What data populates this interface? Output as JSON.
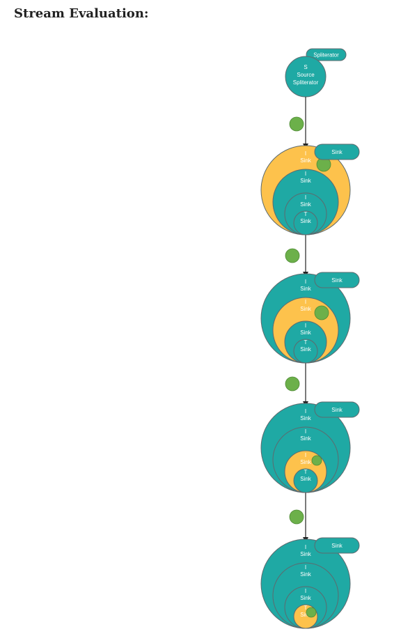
{
  "title": "Stream Evaluation:",
  "colors": {
    "teal": "#1fa9a4",
    "orange": "#fdc24c",
    "green": "#6cb04a",
    "edge": "#5d6a6e",
    "arrow": "#222222"
  },
  "source": {
    "tag": "Spliterator",
    "line1": "S",
    "line2": "Source",
    "line3": "Spliterator"
  },
  "sink_tag": "Sink",
  "stages": [
    {
      "active": 0,
      "rings": [
        {
          "top": "I",
          "bottom": "Sink"
        },
        {
          "top": "I",
          "bottom": "Sink"
        },
        {
          "top": "I",
          "bottom": "Sink"
        },
        {
          "top": "T",
          "bottom": "Sink"
        }
      ]
    },
    {
      "active": 1,
      "rings": [
        {
          "top": "I",
          "bottom": "Sink"
        },
        {
          "top": "I",
          "bottom": "Sink"
        },
        {
          "top": "I",
          "bottom": "Sink"
        },
        {
          "top": "T",
          "bottom": "Sink"
        }
      ]
    },
    {
      "active": 2,
      "rings": [
        {
          "top": "I",
          "bottom": "Sink"
        },
        {
          "top": "I",
          "bottom": "Sink"
        },
        {
          "top": "I",
          "bottom": "Sink"
        },
        {
          "top": "T",
          "bottom": "Sink"
        }
      ]
    },
    {
      "active": 3,
      "rings": [
        {
          "top": "I",
          "bottom": "Sink"
        },
        {
          "top": "I",
          "bottom": "Sink"
        },
        {
          "top": "I",
          "bottom": "Sink"
        },
        {
          "top": "T",
          "bottom": "Sink"
        }
      ]
    }
  ]
}
